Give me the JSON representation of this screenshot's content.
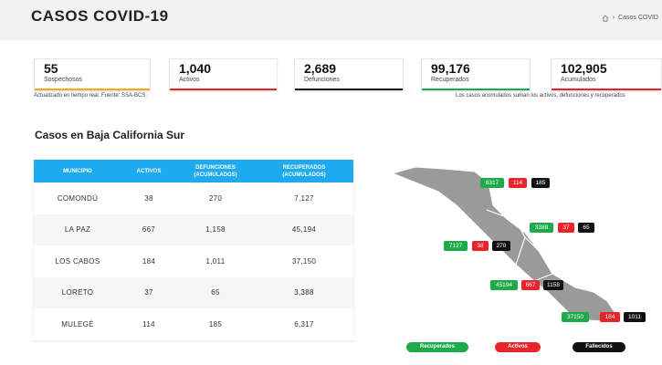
{
  "header": {
    "title": "CASOS COVID-19",
    "breadcrumb": "Casos COVID"
  },
  "stats": [
    {
      "value": "55",
      "label": "Sospechosos",
      "color": "#f5a623"
    },
    {
      "value": "1,040",
      "label": "Activos",
      "color": "#e8232a"
    },
    {
      "value": "2,689",
      "label": "Defunciones",
      "color": "#111111"
    },
    {
      "value": "99,176",
      "label": "Recuperados",
      "color": "#1faa49"
    },
    {
      "value": "102,905",
      "label": "Acumulados",
      "color": "#e8232a"
    }
  ],
  "notes": {
    "left": "Actualizado en tiempo real. Fuente: SSA-BCS.",
    "right": "Los casos acumulados suman los activos, defunciones y recuperados"
  },
  "section_title": "Casos en Baja California Sur",
  "table": {
    "headers": {
      "municipio": "MUNICIPIO",
      "activos": "ACTIVOS",
      "defunciones_1": "DEFUNCIONES",
      "defunciones_2": "(ACUMULADOS)",
      "recuperados_1": "RECUPERADOS",
      "recuperados_2": "(ACUMULADOS)"
    },
    "rows": [
      {
        "municipio": "COMONDÚ",
        "activos": "38",
        "defunciones": "270",
        "recuperados": "7,127"
      },
      {
        "municipio": "LA PAZ",
        "activos": "667",
        "defunciones": "1,158",
        "recuperados": "45,194"
      },
      {
        "municipio": "LOS CABOS",
        "activos": "184",
        "defunciones": "1,011",
        "recuperados": "37,150"
      },
      {
        "municipio": "LORETO",
        "activos": "37",
        "defunciones": "65",
        "recuperados": "3,388"
      },
      {
        "municipio": "MULEGÉ",
        "activos": "114",
        "defunciones": "185",
        "recuperados": "6,317"
      }
    ]
  },
  "map": {
    "mulege": {
      "recuperados": "6317",
      "activos": "114",
      "fallecidos": "185"
    },
    "loreto": {
      "recuperados": "3388",
      "activos": "37",
      "fallecidos": "65"
    },
    "comondu": {
      "recuperados": "7127",
      "activos": "38",
      "fallecidos": "270"
    },
    "lapaz": {
      "recuperados": "45194",
      "activos": "667",
      "fallecidos": "1158"
    },
    "loscabos": {
      "recuperados": "37150",
      "activos": "184",
      "fallecidos": "1011"
    }
  },
  "legend": {
    "recuperados": "Recuperados",
    "activos": "Activos",
    "fallecidos": "Fallecidos"
  },
  "colors": {
    "green": "#1faa49",
    "red": "#e8232a",
    "black": "#111111",
    "table_header": "#1eaaf1"
  }
}
